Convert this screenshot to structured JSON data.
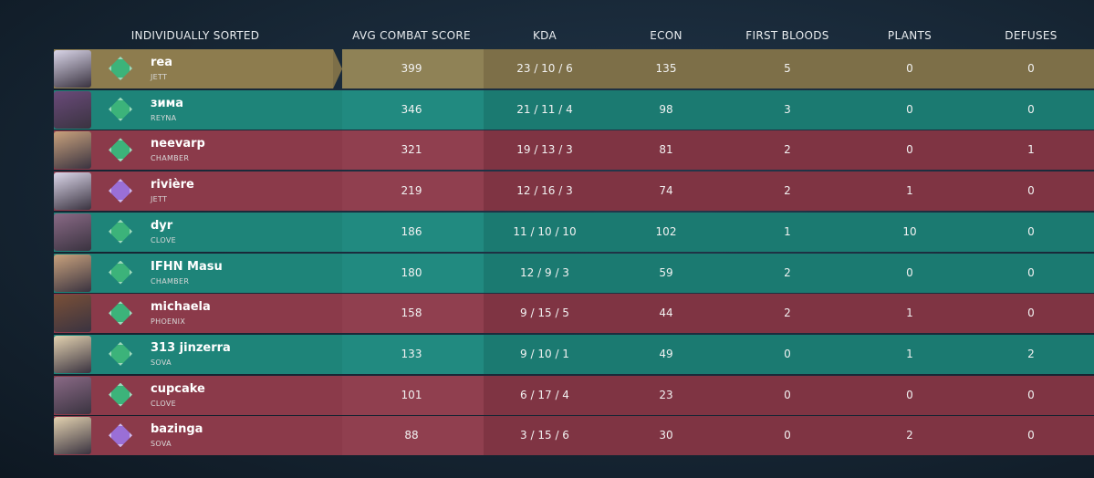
{
  "header": {
    "sorted_label": "INDIVIDUALLY SORTED",
    "columns": [
      "AVG COMBAT SCORE",
      "KDA",
      "ECON",
      "FIRST BLOODS",
      "PLANTS",
      "DEFUSES"
    ]
  },
  "players": [
    {
      "name": "rea",
      "agent": "JETT",
      "acs": 399,
      "kda": "23 / 10 / 6",
      "econ": 135,
      "first_bloods": 5,
      "plants": 0,
      "defuses": 0
    },
    {
      "name": "зима",
      "agent": "REYNA",
      "acs": 346,
      "kda": "21 / 11 / 4",
      "econ": 98,
      "first_bloods": 3,
      "plants": 0,
      "defuses": 0
    },
    {
      "name": "neevarp",
      "agent": "CHAMBER",
      "acs": 321,
      "kda": "19 / 13 / 3",
      "econ": 81,
      "first_bloods": 2,
      "plants": 0,
      "defuses": 1
    },
    {
      "name": "rivière",
      "agent": "JETT",
      "acs": 219,
      "kda": "12 / 16 / 3",
      "econ": 74,
      "first_bloods": 2,
      "plants": 1,
      "defuses": 0
    },
    {
      "name": "dyr",
      "agent": "CLOVE",
      "acs": 186,
      "kda": "11 / 10 / 10",
      "econ": 102,
      "first_bloods": 1,
      "plants": 10,
      "defuses": 0
    },
    {
      "name": "IFHN Masu",
      "agent": "CHAMBER",
      "acs": 180,
      "kda": "12 / 9 / 3",
      "econ": 59,
      "first_bloods": 2,
      "plants": 0,
      "defuses": 0
    },
    {
      "name": "michaela",
      "agent": "PHOENIX",
      "acs": 158,
      "kda": "9 / 15 / 5",
      "econ": 44,
      "first_bloods": 2,
      "plants": 1,
      "defuses": 0
    },
    {
      "name": "313 jinzerra",
      "agent": "SOVA",
      "acs": 133,
      "kda": "9 / 10 / 1",
      "econ": 49,
      "first_bloods": 0,
      "plants": 1,
      "defuses": 2
    },
    {
      "name": "cupcake",
      "agent": "CLOVE",
      "acs": 101,
      "kda": "6 / 17 / 4",
      "econ": 23,
      "first_bloods": 0,
      "plants": 0,
      "defuses": 0
    },
    {
      "name": "bazinga",
      "agent": "SOVA",
      "acs": 88,
      "kda": "3 / 15 / 6",
      "econ": 30,
      "first_bloods": 0,
      "plants": 2,
      "defuses": 0
    }
  ]
}
